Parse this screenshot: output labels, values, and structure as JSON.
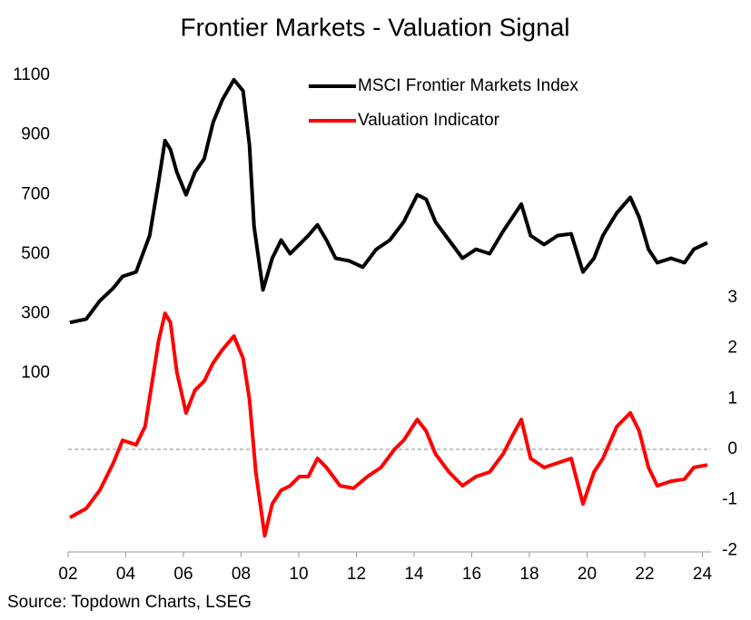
{
  "chart_data": {
    "type": "line",
    "title": "Frontier Markets - Valuation Signal",
    "source": "Source: Topdown Charts, LSEG",
    "legend": "top-right",
    "xlim": [
      2002,
      2024.3
    ],
    "xticks": [
      {
        "value": 2002,
        "label": "02"
      },
      {
        "value": 2004,
        "label": "04"
      },
      {
        "value": 2006,
        "label": "06"
      },
      {
        "value": 2008,
        "label": "08"
      },
      {
        "value": 2010,
        "label": "10"
      },
      {
        "value": 2012,
        "label": "12"
      },
      {
        "value": 2014,
        "label": "14"
      },
      {
        "value": 2016,
        "label": "16"
      },
      {
        "value": 2018,
        "label": "18"
      },
      {
        "value": 2020,
        "label": "20"
      },
      {
        "value": 2022,
        "label": "22"
      },
      {
        "value": 2024,
        "label": "24"
      }
    ],
    "ylim": [
      -500,
      1100
    ],
    "yticks": [
      100,
      300,
      500,
      700,
      900,
      1100
    ],
    "y2lim": [
      -2.03,
      7.4
    ],
    "y2ticks": [
      -2,
      -1,
      0,
      1,
      2,
      3
    ],
    "y2_zero_line": true,
    "series": [
      {
        "name": "MSCI Frontier Markets Index",
        "color": "#000000",
        "axis": "y",
        "x": [
          2002.06,
          2002.63,
          2003.1,
          2003.57,
          2003.89,
          2004.36,
          2004.83,
          2005.14,
          2005.36,
          2005.55,
          2005.77,
          2006.09,
          2006.4,
          2006.72,
          2007.03,
          2007.35,
          2007.75,
          2008.07,
          2008.29,
          2008.45,
          2008.76,
          2009.08,
          2009.39,
          2009.7,
          2010.02,
          2010.33,
          2010.65,
          2010.96,
          2011.28,
          2011.75,
          2012.22,
          2012.69,
          2013.16,
          2013.64,
          2014.11,
          2014.42,
          2014.74,
          2015.21,
          2015.68,
          2016.15,
          2016.62,
          2017.09,
          2017.41,
          2017.72,
          2018.04,
          2018.51,
          2018.98,
          2019.45,
          2019.86,
          2020.24,
          2020.55,
          2021.03,
          2021.5,
          2021.81,
          2022.13,
          2022.44,
          2022.91,
          2023.38,
          2023.7,
          2024.17
        ],
        "values": [
          270,
          282,
          343,
          386,
          425,
          440,
          562,
          744,
          881,
          851,
          775,
          699,
          775,
          820,
          942,
          1018,
          1085,
          1048,
          866,
          592,
          380,
          486,
          547,
          501,
          532,
          562,
          598,
          547,
          486,
          477,
          456,
          516,
          547,
          608,
          699,
          684,
          608,
          547,
          486,
          516,
          501,
          577,
          623,
          668,
          562,
          532,
          562,
          568,
          440,
          486,
          562,
          638,
          690,
          623,
          516,
          471,
          486,
          471,
          516,
          538
        ]
      },
      {
        "name": "Valuation Indicator",
        "color": "#ff0000",
        "axis": "y2",
        "x": [
          2002.06,
          2002.63,
          2003.1,
          2003.57,
          2003.89,
          2004.36,
          2004.67,
          2004.92,
          2005.14,
          2005.36,
          2005.55,
          2005.77,
          2006.09,
          2006.4,
          2006.72,
          2007.03,
          2007.35,
          2007.75,
          2008.07,
          2008.29,
          2008.51,
          2008.82,
          2009.08,
          2009.39,
          2009.7,
          2010.02,
          2010.33,
          2010.65,
          2010.96,
          2011.43,
          2011.9,
          2012.38,
          2012.85,
          2013.32,
          2013.64,
          2014.11,
          2014.42,
          2014.74,
          2015.21,
          2015.68,
          2016.15,
          2016.62,
          2017.09,
          2017.41,
          2017.72,
          2018.04,
          2018.51,
          2018.98,
          2019.45,
          2019.86,
          2020.24,
          2020.55,
          2021.03,
          2021.5,
          2021.81,
          2022.13,
          2022.44,
          2022.91,
          2023.38,
          2023.7,
          2024.17
        ],
        "values": [
          -1.35,
          -1.17,
          -0.81,
          -0.27,
          0.18,
          0.09,
          0.45,
          1.35,
          2.15,
          2.69,
          2.51,
          1.53,
          0.72,
          1.17,
          1.35,
          1.71,
          1.97,
          2.24,
          1.8,
          0.99,
          -0.45,
          -1.71,
          -1.08,
          -0.81,
          -0.72,
          -0.54,
          -0.54,
          -0.18,
          -0.36,
          -0.72,
          -0.77,
          -0.54,
          -0.36,
          0,
          0.18,
          0.59,
          0.36,
          -0.09,
          -0.45,
          -0.72,
          -0.54,
          -0.45,
          -0.09,
          0.27,
          0.59,
          -0.18,
          -0.36,
          -0.27,
          -0.18,
          -1.08,
          -0.45,
          -0.18,
          0.45,
          0.72,
          0.36,
          -0.36,
          -0.72,
          -0.63,
          -0.59,
          -0.36,
          -0.31
        ]
      }
    ]
  }
}
